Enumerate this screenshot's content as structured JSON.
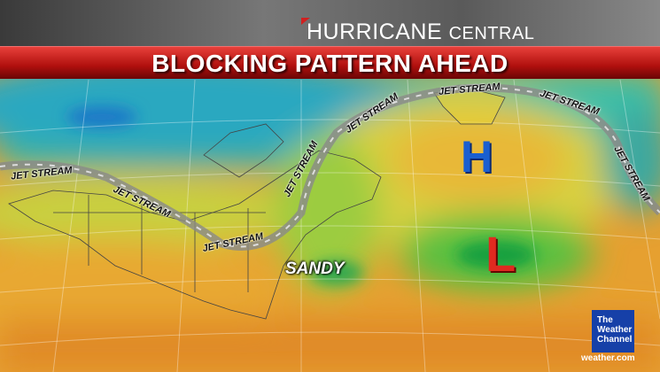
{
  "header": {
    "brand_main": "HURRICANE",
    "brand_sub": "CENTRAL",
    "headline": "BLOCKING PATTERN AHEAD"
  },
  "map": {
    "jet_stream_label": "JET STREAM",
    "high_label": "H",
    "low_label": "L",
    "storm_label": "SANDY",
    "colors": {
      "high": "#1a5fd0",
      "low": "#e02a20",
      "banner": "#c0151a"
    }
  },
  "logo": {
    "line1": "The",
    "line2": "Weather",
    "line3": "Channel",
    "site": "weather.com"
  }
}
